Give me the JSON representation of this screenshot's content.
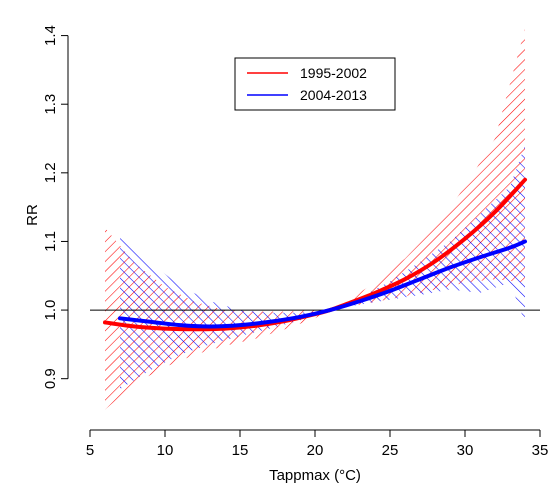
{
  "chart_data": {
    "type": "line",
    "title": "",
    "xlabel": "Tappmax (°C)",
    "ylabel": "RR",
    "xlim": [
      5,
      35
    ],
    "ylim": [
      0.85,
      1.43
    ],
    "x_ticks": [
      5,
      10,
      15,
      20,
      25,
      30,
      35
    ],
    "y_ticks": [
      0.9,
      1.0,
      1.1,
      1.2,
      1.3,
      1.4
    ],
    "x_tick_labels": [
      "5",
      "10",
      "15",
      "20",
      "25",
      "30",
      "35"
    ],
    "y_tick_labels": [
      "0.9",
      "1.0",
      "1.1",
      "1.2",
      "1.3",
      "1.4"
    ],
    "reference_line": 1.0,
    "legend_position": "top-center",
    "series": [
      {
        "name": "1995-2002",
        "color": "#ff0000",
        "x": [
          6,
          8,
          10,
          12,
          14,
          16,
          18,
          20,
          21,
          22,
          24,
          26,
          28,
          30,
          32,
          34
        ],
        "y": [
          0.982,
          0.976,
          0.973,
          0.972,
          0.973,
          0.977,
          0.984,
          0.994,
          1.0,
          1.008,
          1.025,
          1.045,
          1.071,
          1.104,
          1.143,
          1.19
        ],
        "ci_low": [
          0.855,
          0.893,
          0.917,
          0.935,
          0.948,
          0.958,
          0.972,
          0.988,
          1.0,
          1.004,
          1.012,
          1.02,
          1.03,
          1.04,
          1.045,
          1.04
        ],
        "ci_high": [
          1.12,
          1.068,
          1.034,
          1.012,
          1.0,
          0.998,
          0.998,
          1.0,
          1.0,
          1.012,
          1.04,
          1.075,
          1.12,
          1.18,
          1.25,
          1.41
        ]
      },
      {
        "name": "2004-2013",
        "color": "#0000ff",
        "x": [
          7,
          9,
          11,
          13,
          15,
          17,
          19,
          21,
          23,
          25,
          27,
          29,
          31,
          33,
          34
        ],
        "y": [
          0.988,
          0.983,
          0.978,
          0.976,
          0.978,
          0.983,
          0.99,
          1.0,
          1.013,
          1.028,
          1.045,
          1.062,
          1.077,
          1.091,
          1.1
        ],
        "ci_low": [
          0.885,
          0.912,
          0.935,
          0.95,
          0.962,
          0.973,
          0.985,
          1.0,
          1.008,
          1.015,
          1.022,
          1.03,
          1.025,
          1.04,
          0.982
        ],
        "ci_high": [
          1.105,
          1.07,
          1.035,
          1.013,
          1.0,
          0.996,
          0.996,
          1.0,
          1.018,
          1.042,
          1.07,
          1.1,
          1.14,
          1.18,
          1.24
        ]
      }
    ]
  }
}
